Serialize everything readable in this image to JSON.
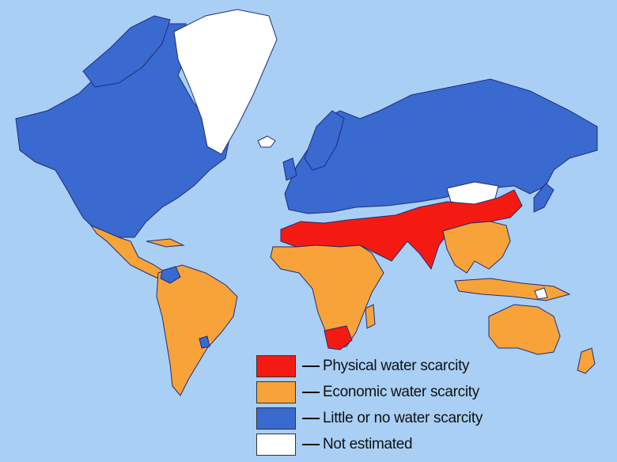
{
  "colors": {
    "ocean": "#a9cff5",
    "physical": "#f41a12",
    "economic": "#f8a23a",
    "little": "#3a69cf",
    "not_estimated": "#ffffff",
    "border": "#1d2e7a"
  },
  "legend": {
    "items": [
      {
        "key": "physical",
        "label": "Physical water scarcity",
        "color": "#f41a12"
      },
      {
        "key": "economic",
        "label": "Economic water scarcity",
        "color": "#f8a23a"
      },
      {
        "key": "little",
        "label": "Little or no water scarcity",
        "color": "#3a69cf"
      },
      {
        "key": "not_estimated",
        "label": "Not estimated",
        "color": "#ffffff"
      }
    ]
  }
}
